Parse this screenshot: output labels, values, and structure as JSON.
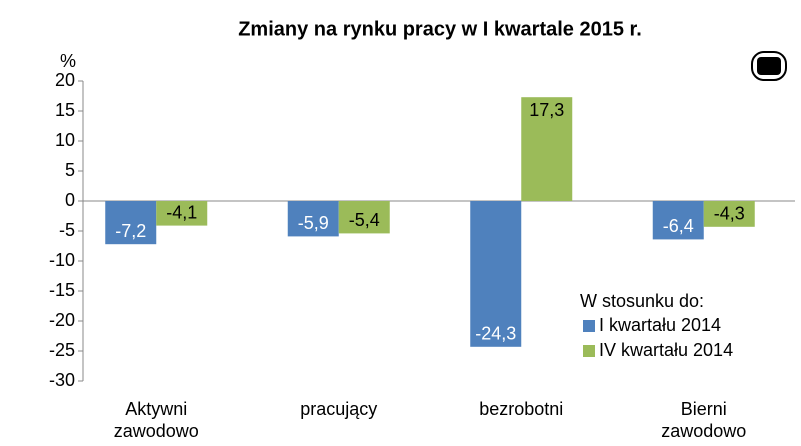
{
  "chart_data": {
    "type": "bar",
    "title": "Zmiany na rynku pracy w I kwartale 2015 r.",
    "y_label": "%",
    "categories": [
      "Aktywni zawodowo",
      "pracujący",
      "bezrobotni",
      "Bierni zawodowo"
    ],
    "legend_title": "W stosunku do:",
    "series": [
      {
        "name": "I kwartału 2014",
        "color": "#4f81bd",
        "values": [
          -7.2,
          -5.9,
          -24.3,
          -6.4
        ],
        "value_labels": [
          "-7,2",
          "-5,9",
          "-24,3",
          "-6,4"
        ]
      },
      {
        "name": "IV kwartału 2014",
        "color": "#9bbb59",
        "values": [
          -4.1,
          -5.4,
          17.3,
          -4.3
        ],
        "value_labels": [
          "-4,1",
          "-5,4",
          "17,3",
          "-4,3"
        ]
      }
    ],
    "ylim": [
      -30,
      20
    ],
    "yticks": [
      -30,
      -25,
      -20,
      -15,
      -10,
      -5,
      0,
      5,
      10,
      15,
      20
    ],
    "grid": false,
    "legend": "lower right"
  }
}
